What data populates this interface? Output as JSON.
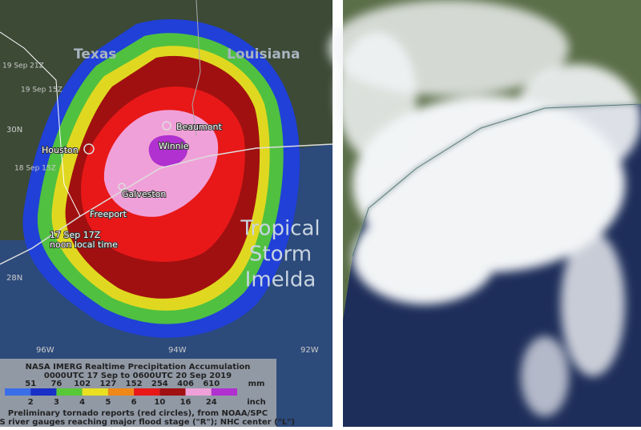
{
  "left_panel": {
    "states": [
      "Texas",
      "Louisiana"
    ],
    "cities": [
      "Houston",
      "Beaumont",
      "Winnie",
      "Galveston",
      "Freeport"
    ],
    "track_labels": [
      "19 Sep 21Z",
      "19 Sep 15Z",
      "18 Sep 15Z",
      "17 Sep 17Z",
      "noon local time"
    ],
    "storm_name": [
      "Tropical",
      "Storm",
      "Imelda"
    ],
    "latitudes": [
      "30N",
      "28N"
    ],
    "longitudes": [
      "96W",
      "94W",
      "92W"
    ],
    "legend": {
      "title": "NASA IMERG Realtime Precipitation Accumulation",
      "period": "0000UTC 17 Sep to 0600UTC 20 Sep 2019",
      "mm_ticks": [
        51,
        76,
        102,
        127,
        152,
        254,
        406,
        610
      ],
      "mm_unit": "mm",
      "inch_ticks": [
        2,
        3,
        4,
        5,
        6,
        10,
        16,
        24
      ],
      "inch_unit": "inch",
      "colors": [
        "#3a6ee8",
        "#1a2ec8",
        "#58c838",
        "#e8e020",
        "#f08818",
        "#e81818",
        "#a01010",
        "#f0a0d8",
        "#b030d0"
      ],
      "notes": [
        "Preliminary tornado reports (red circles), from NOAA/SPC",
        "USGS river gauges reaching major flood stage (\"R\");  NHC center (\"L\")"
      ]
    }
  }
}
